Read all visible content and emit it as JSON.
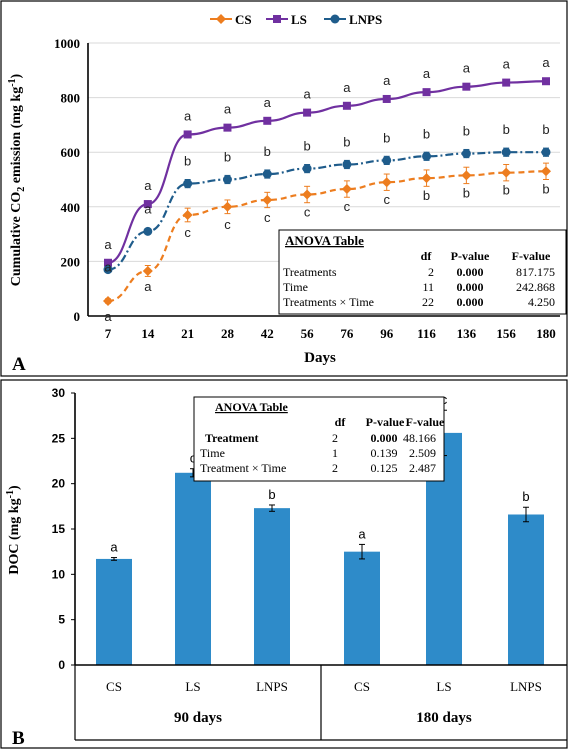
{
  "panelA": {
    "panel_letter": "A",
    "legend": [
      {
        "name": "CS",
        "color": "#ED7D1F",
        "marker": "diamond"
      },
      {
        "name": "LS",
        "color": "#7030A0",
        "marker": "square"
      },
      {
        "name": "LNPS",
        "color": "#1F5C8B",
        "marker": "circle"
      }
    ],
    "ylabel_prefix": "Cumulative CO",
    "ylabel_sub": "2",
    "ylabel_mid": " emission (mg kg",
    "ylabel_sup": "-1",
    "ylabel_suffix": ")",
    "xlabel": "Days",
    "yticks": [
      "0",
      "200",
      "400",
      "600",
      "800",
      "1000"
    ],
    "anova": {
      "title": "ANOVA Table",
      "headers": [
        "df",
        "P-value",
        "F-value"
      ],
      "rows": [
        {
          "label": "Treatments",
          "df": "2",
          "p": "0.000",
          "f": "817.175"
        },
        {
          "label": "Time",
          "df": "11",
          "p": "0.000",
          "f": "242.868"
        },
        {
          "label": "Treatments × Time",
          "df": "22",
          "p": "0.000",
          "f": "4.250"
        }
      ]
    }
  },
  "panelB": {
    "panel_letter": "B",
    "ylabel_prefix": "DOC (mg kg",
    "ylabel_sup": "-1",
    "ylabel_suffix": ")",
    "yticks": [
      "0",
      "5",
      "10",
      "15",
      "20",
      "25",
      "30"
    ],
    "group_labels": [
      "90 days",
      "180 days"
    ],
    "bar_color": "#2E8BC9",
    "anova": {
      "title": "ANOVA Table",
      "headers": [
        "df",
        "P-value",
        "F-value"
      ],
      "rows": [
        {
          "label": "Treatment",
          "df": "2",
          "p": "0.000",
          "f": "48.166"
        },
        {
          "label": "Time",
          "df": "1",
          "p": "0.139",
          "f": "2.509"
        },
        {
          "label": "Treatment × Time",
          "df": "2",
          "p": "0.125",
          "f": "2.487"
        }
      ]
    }
  },
  "chart_data": [
    {
      "type": "line",
      "xlabel": "Days",
      "ylabel": "Cumulative CO2 emission (mg kg-1)",
      "x": [
        "7",
        "14",
        "21",
        "28",
        "42",
        "56",
        "76",
        "96",
        "116",
        "136",
        "156",
        "180"
      ],
      "ylim": [
        0,
        1000
      ],
      "legend_position": "top",
      "series": [
        {
          "name": "CS",
          "color": "#ED7D1F",
          "values": [
            55,
            165,
            370,
            400,
            425,
            445,
            465,
            490,
            505,
            515,
            525,
            530
          ],
          "errors": [
            8,
            20,
            25,
            25,
            28,
            30,
            30,
            30,
            30,
            30,
            30,
            30
          ],
          "letters": [
            "a",
            "a",
            "c",
            "c",
            "c",
            "c",
            "c",
            "c",
            "b",
            "b",
            "b",
            "b"
          ]
        },
        {
          "name": "LS",
          "color": "#7030A0",
          "values": [
            195,
            410,
            665,
            690,
            715,
            745,
            770,
            795,
            820,
            840,
            855,
            860
          ],
          "errors": [
            0,
            0,
            10,
            8,
            8,
            8,
            8,
            8,
            8,
            8,
            8,
            8
          ],
          "letters": [
            "a",
            "a",
            "a",
            "a",
            "a",
            "a",
            "a",
            "a",
            "a",
            "a",
            "a",
            "a"
          ]
        },
        {
          "name": "LNPS",
          "color": "#1F5C8B",
          "values": [
            170,
            310,
            485,
            500,
            520,
            540,
            555,
            570,
            585,
            595,
            600,
            600
          ],
          "errors": [
            8,
            8,
            15,
            15,
            15,
            15,
            15,
            15,
            15,
            15,
            15,
            15
          ],
          "letters": [
            "a",
            "a",
            "b",
            "b",
            "b",
            "b",
            "b",
            "b",
            "b",
            "b",
            "b",
            "b"
          ]
        }
      ]
    },
    {
      "type": "bar",
      "ylabel": "DOC (mg kg-1)",
      "ylim": [
        0,
        30
      ],
      "groups": [
        "90 days",
        "180 days"
      ],
      "categories": [
        "CS",
        "LS",
        "LNPS",
        "CS",
        "LS",
        "LNPS"
      ],
      "values": [
        11.7,
        21.2,
        17.3,
        12.5,
        25.6,
        16.6
      ],
      "errors": [
        0.15,
        0.45,
        0.35,
        0.8,
        2.5,
        0.8
      ],
      "letters": [
        "a",
        "c",
        "b",
        "a",
        "c",
        "b"
      ]
    }
  ]
}
